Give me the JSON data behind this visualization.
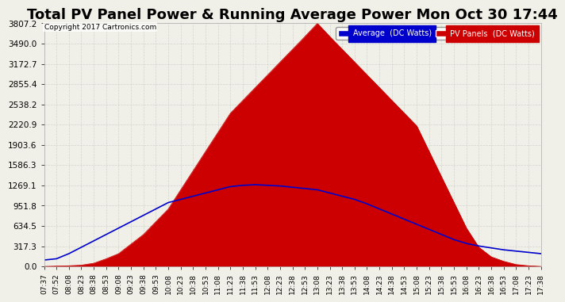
{
  "title": "Total PV Panel Power & Running Average Power Mon Oct 30 17:44",
  "copyright": "Copyright 2017 Cartronics.com",
  "legend_labels": [
    "Average  (DC Watts)",
    "PV Panels  (DC Watts)"
  ],
  "legend_colors": [
    "#0000cc",
    "#cc0000"
  ],
  "legend_bg_colors": [
    "#0000cc",
    "#cc0000"
  ],
  "ymax": 3807.2,
  "ymin": 0.0,
  "yticks": [
    0.0,
    317.3,
    634.5,
    951.8,
    1269.1,
    1586.3,
    1903.6,
    2220.9,
    2538.2,
    2855.4,
    3172.7,
    3490.0,
    3807.2
  ],
  "bg_color": "#f0f0e8",
  "plot_bg_color": "#f0f0e8",
  "grid_color": "#cccccc",
  "pv_color": "#cc0000",
  "avg_color": "#0000cc",
  "title_fontsize": 13,
  "xtick_labels": [
    "07:37",
    "07:52",
    "08:08",
    "08:23",
    "08:38",
    "08:53",
    "09:08",
    "09:23",
    "09:38",
    "09:53",
    "10:08",
    "10:23",
    "10:38",
    "10:53",
    "11:08",
    "11:23",
    "11:38",
    "11:53",
    "12:08",
    "12:23",
    "12:38",
    "12:53",
    "13:08",
    "13:23",
    "13:38",
    "13:53",
    "14:08",
    "14:23",
    "14:38",
    "14:53",
    "15:08",
    "15:23",
    "15:38",
    "15:53",
    "16:08",
    "16:23",
    "16:38",
    "16:53",
    "17:08",
    "17:23",
    "17:38"
  ],
  "pv_data": [
    0,
    5,
    10,
    20,
    50,
    120,
    200,
    350,
    500,
    700,
    900,
    1200,
    1500,
    1800,
    2100,
    2400,
    2600,
    2800,
    3000,
    3200,
    3400,
    3600,
    3807,
    3600,
    3400,
    3200,
    3000,
    2800,
    2600,
    2400,
    2200,
    1800,
    1400,
    1000,
    600,
    300,
    150,
    80,
    30,
    10,
    0
  ],
  "avg_data": [
    100,
    120,
    200,
    300,
    400,
    500,
    600,
    700,
    800,
    900,
    1000,
    1050,
    1100,
    1150,
    1200,
    1250,
    1270,
    1280,
    1270,
    1260,
    1240,
    1220,
    1200,
    1150,
    1100,
    1050,
    980,
    900,
    820,
    740,
    660,
    580,
    500,
    420,
    360,
    320,
    290,
    260,
    240,
    220,
    200
  ]
}
